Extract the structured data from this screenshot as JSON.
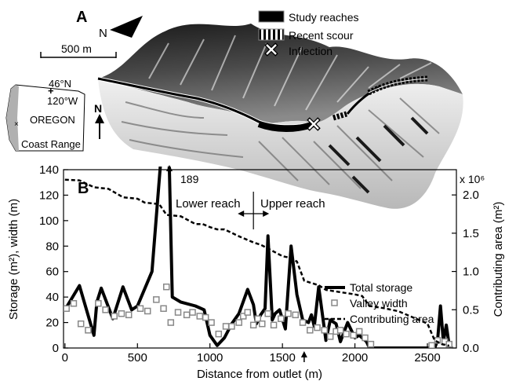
{
  "panel_a": {
    "label": "A",
    "north_label": "N",
    "scale_label": "500 m",
    "legend": {
      "study_reaches": "Study reaches",
      "recent_scour": "Recent scour",
      "inflection": "Inflection"
    },
    "inset": {
      "latitude": "46°N",
      "longitude": "120°W",
      "state": "OREGON",
      "range": "Coast Range",
      "north_label": "N"
    }
  },
  "chart_data": {
    "type": "line",
    "panel_label": "B",
    "xlabel": "Distance from outlet (m)",
    "ylabel": "Storage (m²), width (m)",
    "ylabel_right": "Contributing area (m²)",
    "right_multiplier": "x 10⁶",
    "xlim": [
      -10,
      2700
    ],
    "ylim": [
      0,
      140
    ],
    "ylim_right": [
      0,
      2.33
    ],
    "x_ticks": [
      0,
      500,
      1000,
      1500,
      2000,
      2500
    ],
    "y_ticks": [
      0,
      20,
      40,
      60,
      80,
      100,
      120,
      140
    ],
    "y_right_ticks": [
      0.0,
      0.5,
      1.0,
      1.5,
      2.0
    ],
    "y_right_tick_labels": [
      "0.0",
      "0.5",
      "1.0",
      "1.5",
      "2.0"
    ],
    "grid": false,
    "legend_position": "right",
    "annotations": {
      "peak_label": "189",
      "lower_reach": "Lower reach",
      "upper_reach": "Upper reach",
      "reach_boundary_x": 1300,
      "peak_x": 720,
      "inflection_x": 1650
    },
    "series": [
      {
        "name": "Total storage",
        "style": "line-thick",
        "axis": "left",
        "x": [
          0,
          100,
          200,
          220,
          250,
          330,
          400,
          460,
          500,
          600,
          690,
          720,
          740,
          800,
          900,
          960,
          980,
          1000,
          1050,
          1100,
          1150,
          1200,
          1260,
          1300,
          1320,
          1350,
          1380,
          1400,
          1430,
          1450,
          1480,
          1520,
          1560,
          1600,
          1640,
          1680,
          1700,
          1720,
          1750,
          1800,
          1830,
          1870,
          1900,
          1950,
          2000,
          2030,
          2080,
          2100,
          2200,
          2500,
          2550,
          2570,
          2590,
          2610,
          2630,
          2650,
          2670
        ],
        "y": [
          30,
          49,
          10,
          36,
          47,
          23,
          48,
          30,
          33,
          60,
          189,
          140,
          40,
          36,
          33,
          30,
          20,
          10,
          2,
          8,
          19,
          27,
          46,
          34,
          19,
          26,
          31,
          88,
          22,
          27,
          30,
          15,
          80,
          42,
          22,
          20,
          26,
          17,
          48,
          6,
          22,
          19,
          5,
          20,
          8,
          10,
          5,
          0,
          0,
          0,
          0,
          6,
          33,
          5,
          18,
          2,
          0
        ]
      },
      {
        "name": "Valley width",
        "style": "markers-square",
        "axis": "left",
        "x": [
          10,
          60,
          110,
          160,
          230,
          280,
          340,
          390,
          440,
          520,
          570,
          630,
          680,
          700,
          730,
          780,
          840,
          880,
          930,
          970,
          1010,
          1060,
          1110,
          1150,
          1200,
          1230,
          1260,
          1300,
          1330,
          1360,
          1400,
          1440,
          1490,
          1540,
          1590,
          1640,
          1690,
          1740,
          1790,
          1830,
          1870,
          1900,
          1940,
          1990,
          2030,
          2070,
          2110,
          2530,
          2570,
          2620,
          2650
        ],
        "y": [
          31,
          35,
          19,
          14,
          35,
          30,
          25,
          27,
          26,
          31,
          29,
          38,
          31,
          48,
          20,
          28,
          26,
          28,
          25,
          24,
          20,
          11,
          17,
          17,
          20,
          25,
          28,
          18,
          23,
          19,
          27,
          18,
          23,
          27,
          26,
          20,
          14,
          16,
          14,
          9,
          13,
          14,
          11,
          10,
          13,
          8,
          3,
          2,
          6,
          5,
          3
        ]
      },
      {
        "name": "Contributing area",
        "style": "line-dashed",
        "axis": "right",
        "x": [
          0,
          100,
          200,
          300,
          400,
          500,
          550,
          650,
          700,
          800,
          900,
          950,
          1000,
          1050,
          1100,
          1200,
          1250,
          1300,
          1350,
          1400,
          1500,
          1550,
          1600,
          1650,
          1700,
          1750,
          1800,
          1900,
          2000,
          2050,
          2100,
          2200,
          2300,
          2400,
          2500,
          2550,
          2600,
          2650
        ],
        "y": [
          2.2,
          2.19,
          2.1,
          2.08,
          1.97,
          1.95,
          1.9,
          1.88,
          1.74,
          1.72,
          1.62,
          1.62,
          1.58,
          1.55,
          1.55,
          1.46,
          1.42,
          1.38,
          1.35,
          1.3,
          1.2,
          1.18,
          1.13,
          0.88,
          0.85,
          0.82,
          0.76,
          0.73,
          0.7,
          0.68,
          0.55,
          0.52,
          0.48,
          0.4,
          0.32,
          0.1,
          0.05,
          0.03
        ]
      }
    ]
  }
}
